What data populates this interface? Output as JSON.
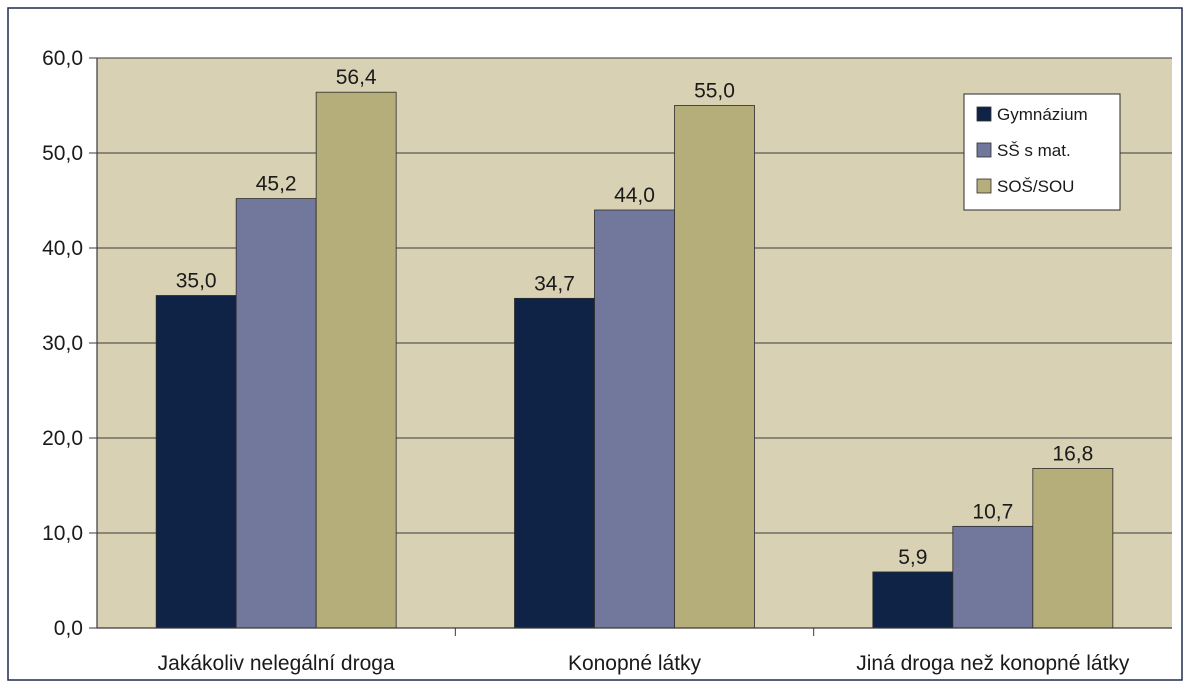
{
  "chart_data": {
    "type": "bar",
    "categories": [
      "Jakákoliv nelegální droga",
      "Konopné látky",
      "Jiná droga než konopné látky"
    ],
    "series": [
      {
        "name": "Gymnázium",
        "values": [
          35.0,
          34.7,
          5.9
        ],
        "color": "#0f2347",
        "labels": [
          "35,0",
          "34,7",
          "5,9"
        ]
      },
      {
        "name": "SŠ s mat.",
        "values": [
          45.2,
          44.0,
          10.7
        ],
        "color": "#72789c",
        "labels": [
          "45,2",
          "44,0",
          "10,7"
        ]
      },
      {
        "name": "SOŠ/SOU",
        "values": [
          56.4,
          55.0,
          16.8
        ],
        "color": "#b5ae7a",
        "labels": [
          "56,4",
          "55,0",
          "16,8"
        ]
      }
    ],
    "yticks": [
      0,
      10,
      20,
      30,
      40,
      50,
      60
    ],
    "ytick_labels": [
      "0,0",
      "10,0",
      "20,0",
      "30,0",
      "40,0",
      "50,0",
      "60,0"
    ],
    "ylim": [
      0,
      60
    ],
    "grid": true,
    "legend_position": "top-right",
    "colors": {
      "plot_background": "#d8d1b4",
      "frame": "#1f2d4d"
    }
  }
}
